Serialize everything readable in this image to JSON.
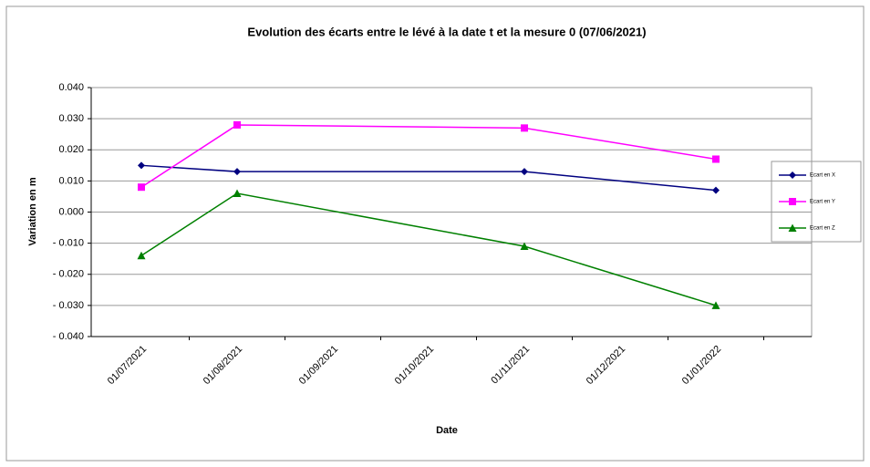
{
  "chart_data": {
    "type": "line",
    "title": "Evolution des écarts entre le lévé à la date t et la mesure 0 (07/06/2021)",
    "xlabel": "Date",
    "ylabel": "Variation en m",
    "x": [
      "01/07/2021",
      "01/08/2021",
      "01/11/2021",
      "01/01/2022"
    ],
    "xticks": [
      "01/07/2021",
      "01/08/2021",
      "01/09/2021",
      "01/10/2021",
      "01/11/2021",
      "01/12/2021",
      "01/01/2022"
    ],
    "series": [
      {
        "name": "Ecart en X",
        "color": "#000080",
        "marker": "diamond",
        "values": [
          0.015,
          0.013,
          0.013,
          0.007
        ]
      },
      {
        "name": "Ecart en Y",
        "color": "#ff00ff",
        "marker": "square",
        "values": [
          0.008,
          0.028,
          0.027,
          0.017
        ]
      },
      {
        "name": "Ecart en Z",
        "color": "#008000",
        "marker": "triangle",
        "values": [
          -0.014,
          0.006,
          -0.011,
          -0.03
        ]
      }
    ],
    "ylim": [
      -0.04,
      0.04
    ],
    "yticks": [
      {
        "value": 0.04,
        "label": "0.040"
      },
      {
        "value": 0.03,
        "label": "0.030"
      },
      {
        "value": 0.02,
        "label": "0.020"
      },
      {
        "value": 0.01,
        "label": "0.010"
      },
      {
        "value": 0,
        "label": "0.000"
      },
      {
        "value": -0.01,
        "label": "- 0.010"
      },
      {
        "value": -0.02,
        "label": "- 0.020"
      },
      {
        "value": -0.03,
        "label": "- 0.030"
      },
      {
        "value": -0.04,
        "label": "- 0.040"
      }
    ],
    "grid": true,
    "legend": "right"
  }
}
